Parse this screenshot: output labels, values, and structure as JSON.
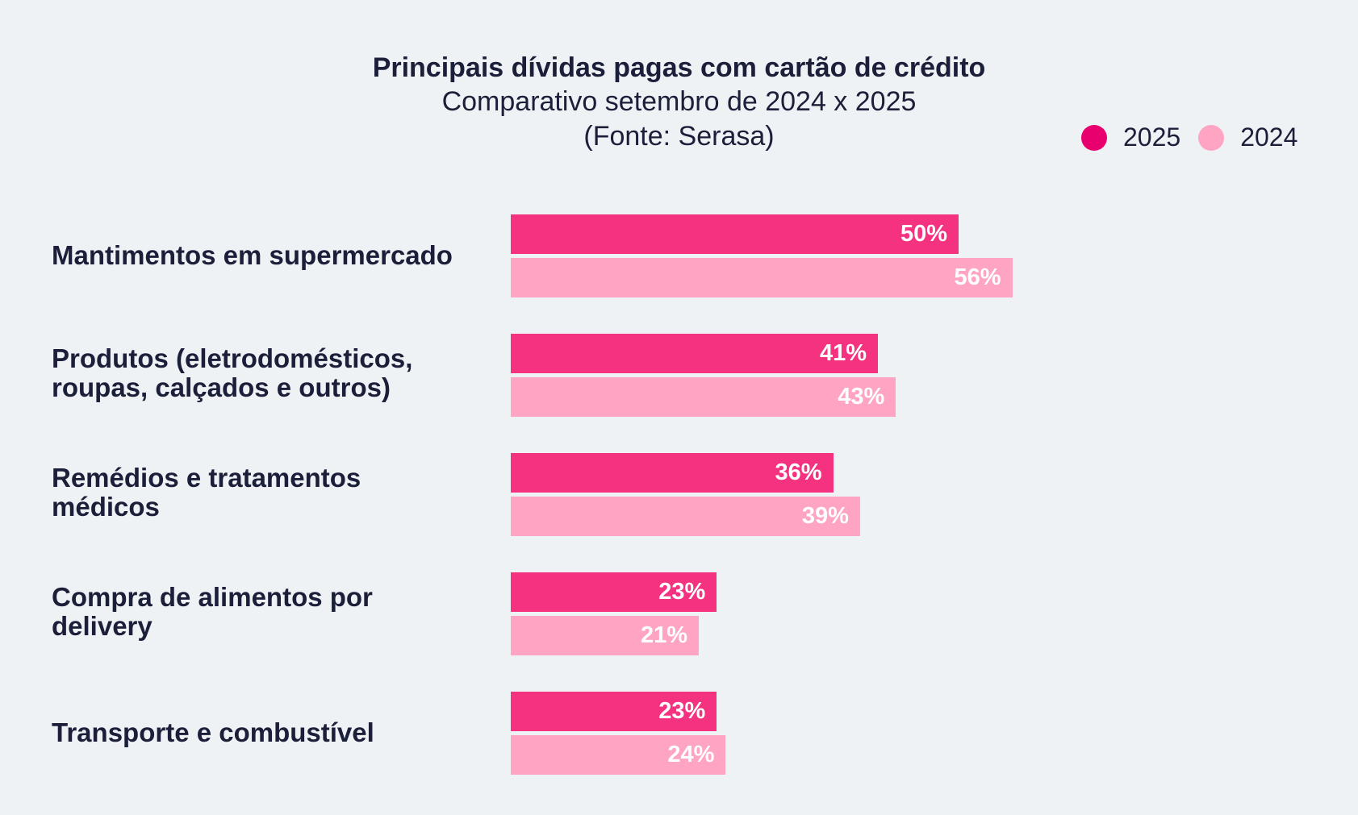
{
  "chart_data": {
    "type": "bar",
    "orientation": "horizontal",
    "title": "Principais dívidas pagas com cartão de crédito",
    "subtitle": "Comparativo setembro de 2024 x 2025",
    "source": "(Fonte: Serasa)",
    "categories": [
      [
        "Mantimentos em supermercado"
      ],
      [
        "Produtos (eletrodomésticos,",
        "roupas, calçados e outros)"
      ],
      [
        "Remédios e tratamentos",
        "médicos"
      ],
      [
        "Compra de alimentos por",
        "delivery"
      ],
      [
        "Transporte e combustível"
      ]
    ],
    "series": [
      {
        "name": "2025",
        "color": "#f43280",
        "legend_color": "#e8006e",
        "values": [
          50,
          41,
          36,
          23,
          23
        ],
        "labels": [
          "50%",
          "41%",
          "36%",
          "23%",
          "23%"
        ]
      },
      {
        "name": "2024",
        "color": "#ffa5c3",
        "legend_color": "#ffa5c3",
        "values": [
          56,
          43,
          39,
          21,
          24
        ],
        "labels": [
          "56%",
          "43%",
          "39%",
          "21%",
          "24%"
        ]
      }
    ],
    "legend_position": "top-right",
    "grid": false,
    "xlim": [
      0,
      60
    ]
  }
}
